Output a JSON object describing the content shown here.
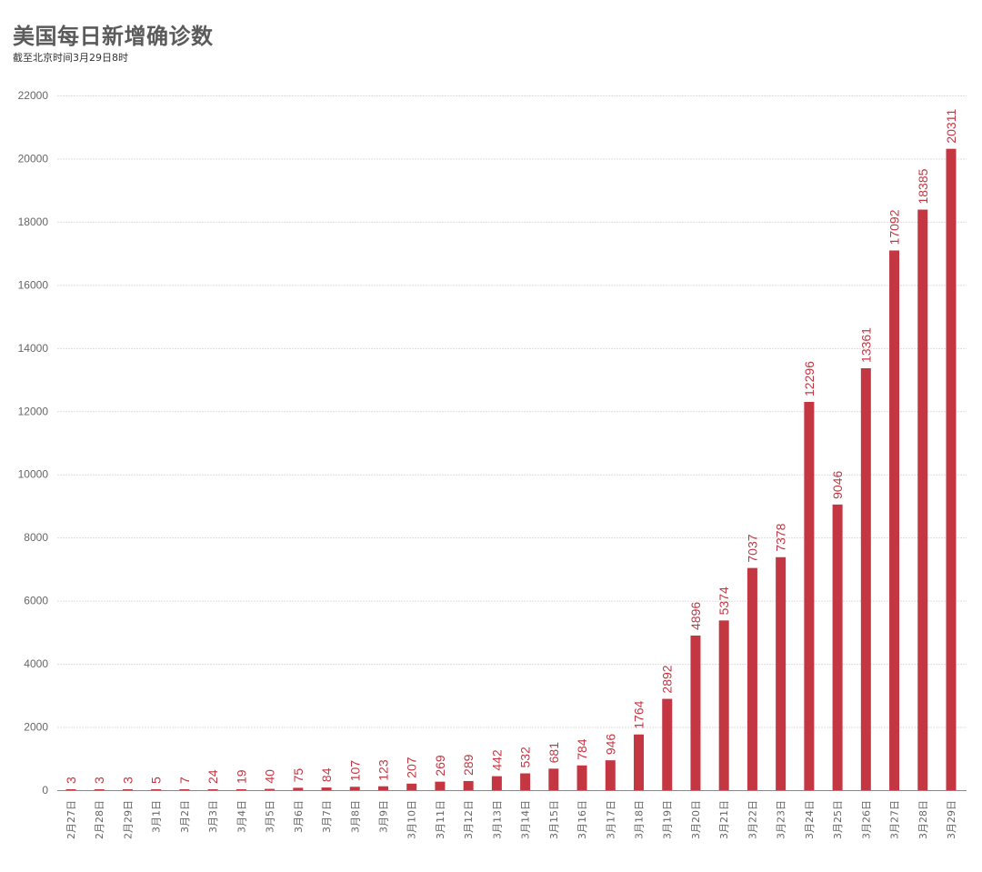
{
  "header": {
    "title": "美国每日新增确诊数",
    "subtitle": "截至北京时间3月29日8时"
  },
  "colors": {
    "bar": "#c43642",
    "label": "#c43642",
    "axis": "#888888",
    "grid": "#dddddd",
    "title": "#5b5b5b"
  },
  "chart_data": {
    "type": "bar",
    "title": "美国每日新增确诊数",
    "subtitle": "截至北京时间3月29日8时",
    "xlabel": "",
    "ylabel": "",
    "ylim": [
      0,
      22000
    ],
    "yticks": [
      0,
      2000,
      4000,
      6000,
      8000,
      10000,
      12000,
      14000,
      16000,
      18000,
      20000,
      22000
    ],
    "grid": true,
    "legend": null,
    "categories": [
      "2月27日",
      "2月28日",
      "2月29日",
      "3月1日",
      "3月2日",
      "3月3日",
      "3月4日",
      "3月5日",
      "3月6日",
      "3月7日",
      "3月8日",
      "3月9日",
      "3月10日",
      "3月11日",
      "3月12日",
      "3月13日",
      "3月14日",
      "3月15日",
      "3月16日",
      "3月17日",
      "3月18日",
      "3月19日",
      "3月20日",
      "3月21日",
      "3月22日",
      "3月23日",
      "3月24日",
      "3月25日",
      "3月26日",
      "3月27日",
      "3月28日",
      "3月29日"
    ],
    "values": [
      3,
      3,
      3,
      5,
      7,
      24,
      19,
      40,
      75,
      84,
      107,
      123,
      207,
      269,
      289,
      442,
      532,
      681,
      784,
      946,
      1764,
      2892,
      4896,
      5374,
      7037,
      7378,
      12296,
      9046,
      13361,
      17092,
      18385,
      20311
    ]
  }
}
